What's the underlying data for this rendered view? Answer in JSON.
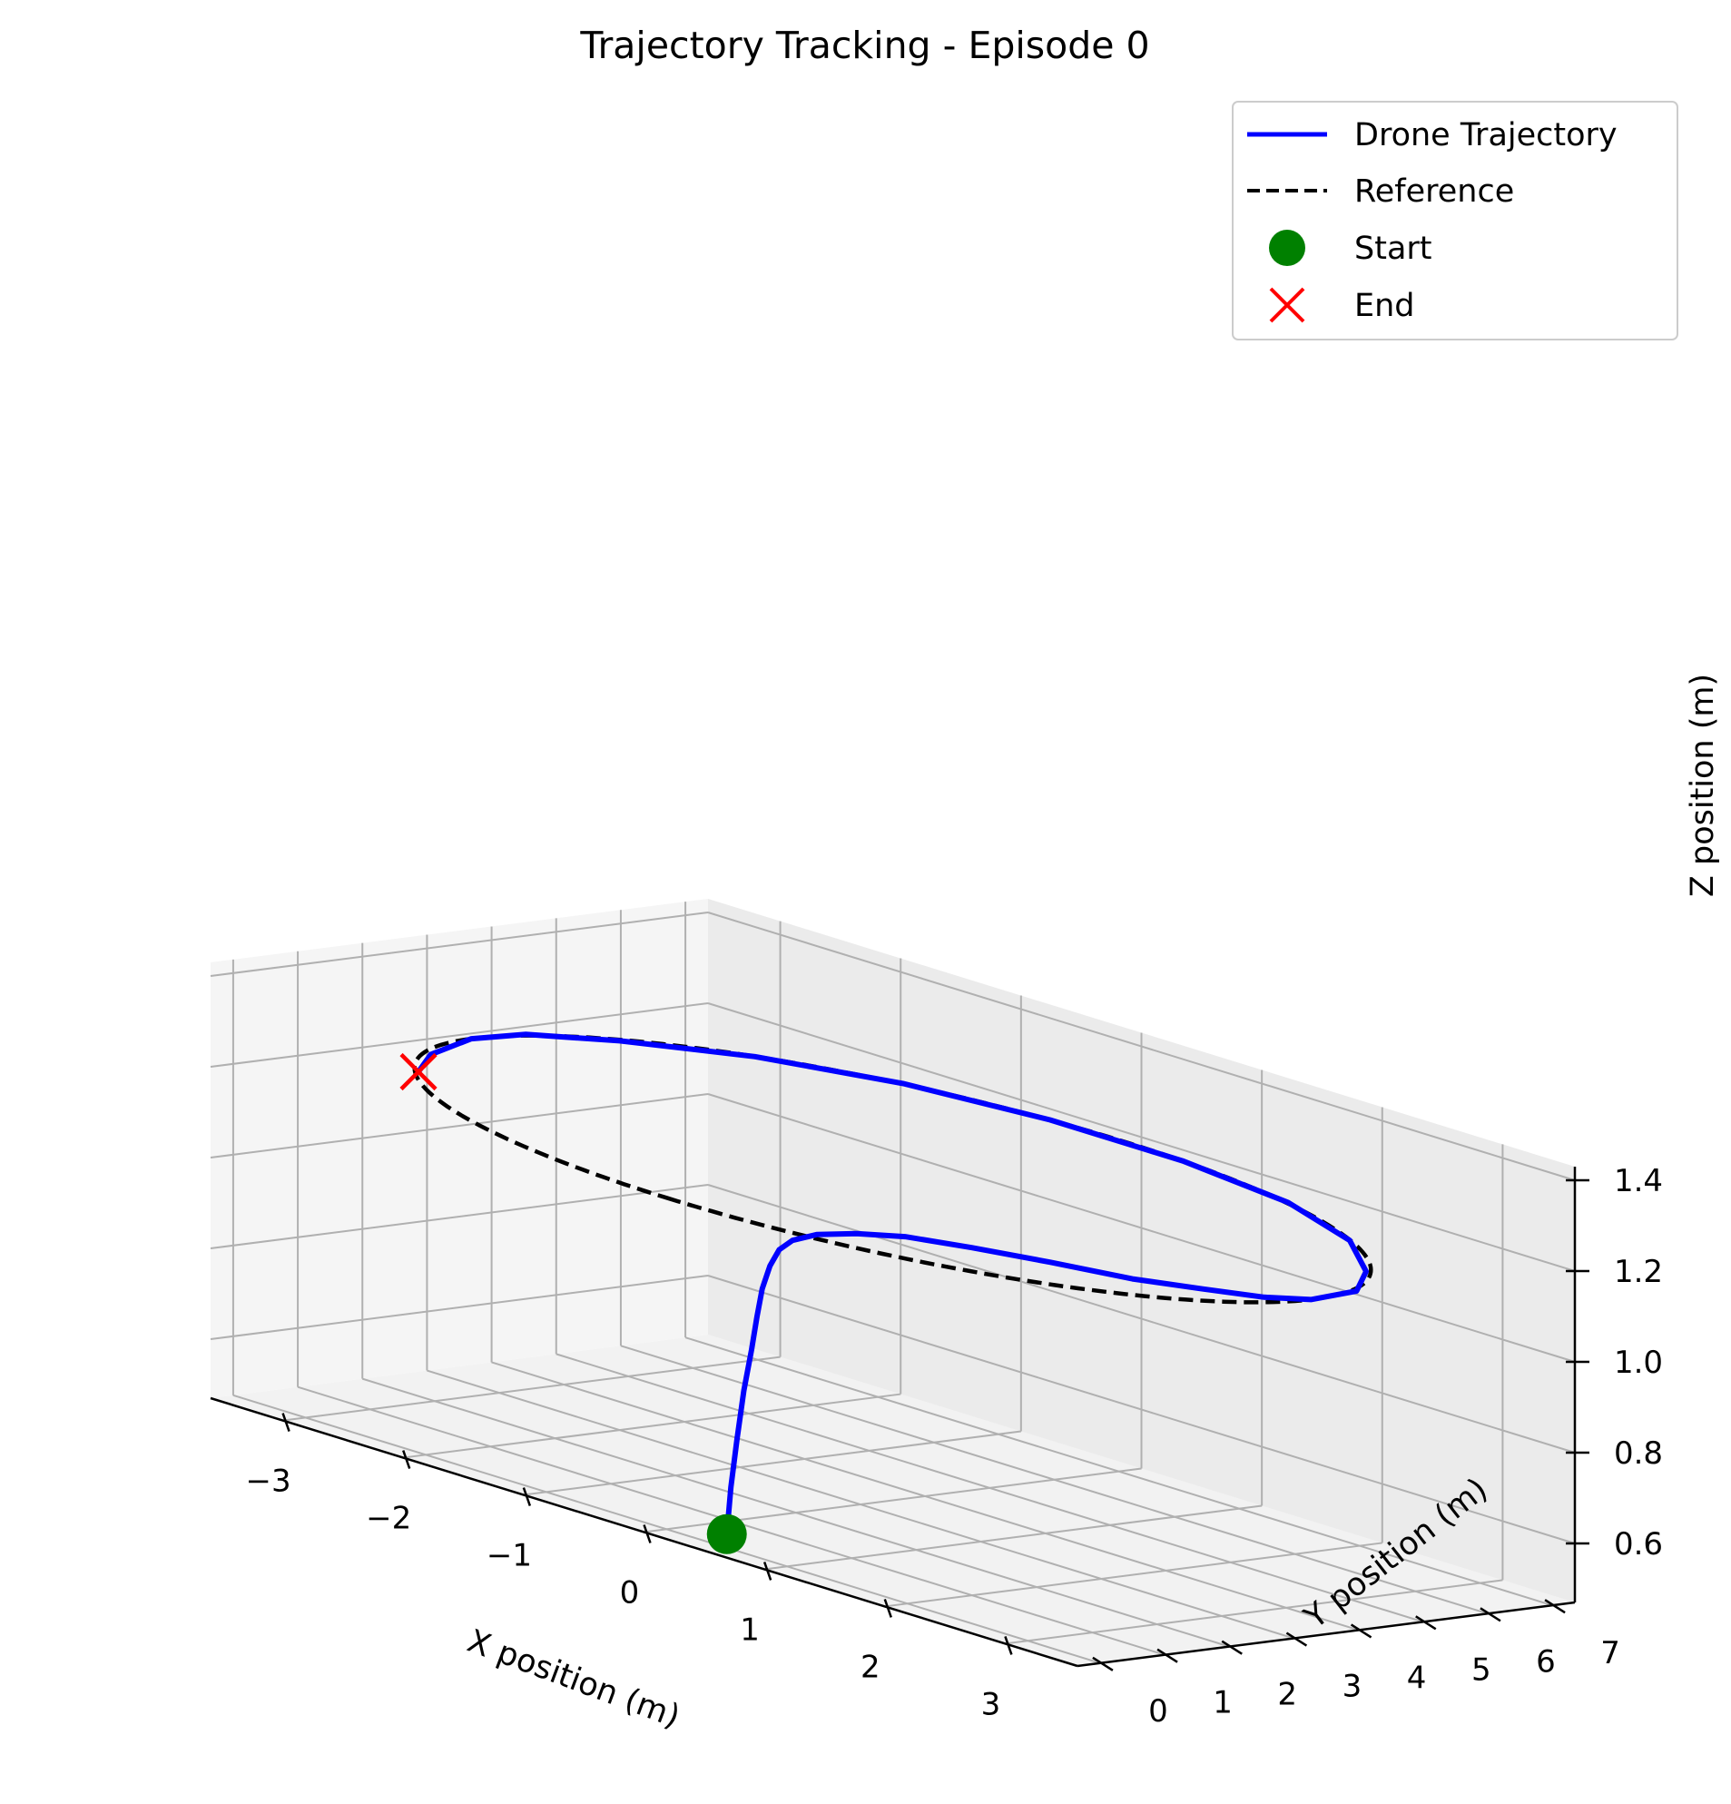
{
  "chart_data": {
    "type": "line3d",
    "title": "Trajectory Tracking - Episode 0",
    "xlabel": "X position (m)",
    "ylabel": "Y position (m)",
    "zlabel": "Z position (m)",
    "x_ticks": [
      "−3",
      "−2",
      "−1",
      "0",
      "1",
      "2",
      "3"
    ],
    "y_ticks": [
      "0",
      "1",
      "2",
      "3",
      "4",
      "5",
      "6",
      "7"
    ],
    "z_ticks": [
      "0.6",
      "0.8",
      "1.0",
      "1.2",
      "1.4"
    ],
    "xlim": [
      -3.6,
      3.6
    ],
    "ylim": [
      -0.35,
      7.35
    ],
    "zlim": [
      0.47,
      1.43
    ],
    "grid": true,
    "legend_position": "top-right",
    "legend": [
      {
        "label": "Drone Trajectory",
        "color": "#0000ff",
        "style": "solid"
      },
      {
        "label": "Reference",
        "color": "#000000",
        "style": "dashed"
      },
      {
        "label": "Start",
        "color": "#008000",
        "marker": "circle"
      },
      {
        "label": "End",
        "color": "#ff0000",
        "marker": "x"
      }
    ],
    "reference": {
      "shape": "circle",
      "center": [
        0,
        3.5
      ],
      "radius": 3.5,
      "z": 1.2
    },
    "trajectory": {
      "x": [
        0.5,
        0.48,
        0.45,
        0.4,
        0.33,
        0.24,
        0.15,
        0.08,
        0.05,
        0.08,
        0.2,
        0.45,
        0.8,
        1.3,
        1.9,
        2.5,
        2.95,
        3.3,
        3.5,
        3.45,
        3.1,
        2.47,
        1.6,
        0.55,
        -0.55,
        -1.6,
        -2.47,
        -3.1,
        -3.45,
        -3.5,
        -3.3,
        -3.0
      ],
      "y": [
        0.0,
        0.1,
        0.25,
        0.45,
        0.7,
        0.95,
        1.2,
        1.45,
        1.65,
        1.8,
        1.95,
        2.1,
        2.2,
        2.3,
        2.4,
        2.55,
        2.8,
        3.1,
        3.45,
        4.25,
        5.05,
        5.97,
        6.64,
        6.96,
        6.96,
        6.64,
        5.97,
        5.05,
        4.25,
        3.5,
        2.5,
        1.75
      ],
      "z": [
        0.5,
        0.6,
        0.7,
        0.8,
        0.88,
        0.94,
        0.99,
        1.03,
        1.06,
        1.08,
        1.1,
        1.12,
        1.14,
        1.155,
        1.17,
        1.18,
        1.19,
        1.195,
        1.2,
        1.2,
        1.2,
        1.2,
        1.2,
        1.2,
        1.2,
        1.2,
        1.2,
        1.2,
        1.2,
        1.2,
        1.2,
        1.2
      ]
    },
    "start": {
      "x": 0.5,
      "y": 0.0,
      "z": 0.5
    },
    "end": {
      "x": -3.0,
      "y": 1.75,
      "z": 1.2
    }
  }
}
